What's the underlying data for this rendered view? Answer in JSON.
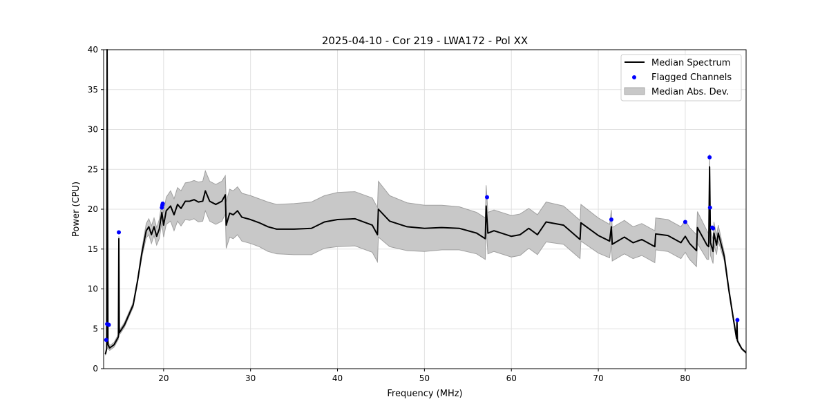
{
  "chart_data": {
    "type": "line",
    "title": "2025-04-10 - Cor 219 - LWA172 - Pol XX",
    "xlabel": "Frequency (MHz)",
    "ylabel": "Power (CPU)",
    "xlim": [
      13.1,
      87.0
    ],
    "ylim": [
      0,
      40
    ],
    "xticks": [
      20,
      30,
      40,
      50,
      60,
      70,
      80
    ],
    "yticks": [
      0,
      5,
      10,
      15,
      20,
      25,
      30,
      35,
      40
    ],
    "grid": true,
    "legend": {
      "placement": "top-right",
      "entries": [
        "Median Spectrum",
        "Flagged Channels",
        "Median Abs. Dev."
      ]
    },
    "colors": {
      "median": "#000000",
      "flagged": "#0000ff",
      "mad": "#c8c8c8",
      "mad_edge": "#a0a0a0"
    },
    "median_spectrum": {
      "x": [
        13.3,
        13.45,
        13.5,
        13.6,
        13.8,
        14.3,
        14.8,
        14.85,
        14.9,
        15.5,
        16.5,
        17.0,
        17.5,
        18.0,
        18.3,
        18.6,
        18.9,
        19.2,
        19.5,
        19.8,
        20.0,
        20.3,
        20.8,
        21.2,
        21.6,
        22.0,
        22.5,
        23.0,
        23.5,
        24.0,
        24.5,
        24.8,
        25.3,
        26.0,
        26.7,
        27.1,
        27.2,
        27.6,
        28.0,
        28.5,
        29,
        30,
        31,
        32,
        33,
        35,
        37,
        38.5,
        40,
        42,
        44,
        44.6,
        44.7,
        46,
        48,
        50,
        52,
        54,
        56,
        57.0,
        57.1,
        57.3,
        58,
        60,
        61,
        62,
        63,
        64,
        66,
        67.9,
        68.0,
        70,
        71.3,
        71.5,
        71.6,
        73,
        74,
        75,
        76.5,
        76.6,
        78,
        79.5,
        80,
        80.5,
        81.3,
        81.4,
        82.5,
        82.7,
        82.8,
        82.9,
        83.2,
        83.3,
        83.6,
        83.8,
        84.5,
        85,
        85.5,
        85.9,
        85.95,
        86.0,
        86.5,
        87.0
      ],
      "y": [
        1.8,
        2.5,
        40,
        3.0,
        2.6,
        3.0,
        4.0,
        16.3,
        4.5,
        5.5,
        8.0,
        11,
        14.5,
        17.3,
        17.8,
        16.8,
        17.8,
        16.6,
        17.5,
        19.6,
        18.0,
        19.8,
        20.4,
        19.3,
        20.6,
        20.1,
        21.0,
        21.0,
        21.2,
        20.9,
        21.0,
        22.3,
        21.0,
        20.6,
        21.0,
        21.8,
        18.0,
        19.5,
        19.3,
        19.8,
        19.0,
        18.7,
        18.3,
        17.8,
        17.5,
        17.5,
        17.6,
        18.4,
        18.7,
        18.8,
        18.0,
        16.8,
        20.0,
        18.5,
        17.8,
        17.6,
        17.7,
        17.6,
        17.0,
        16.3,
        20.4,
        17.0,
        17.3,
        16.6,
        16.8,
        17.6,
        16.8,
        18.4,
        18.0,
        16.2,
        18.3,
        16.7,
        16.0,
        17.8,
        15.6,
        16.5,
        15.8,
        16.2,
        15.3,
        16.9,
        16.7,
        15.8,
        16.6,
        15.7,
        14.8,
        17.7,
        15.5,
        15.3,
        25.3,
        15.8,
        14.7,
        17.0,
        15.5,
        17.0,
        14.0,
        10.0,
        6.5,
        3.8,
        6.0,
        3.5,
        2.5,
        2.0
      ],
      "mad": [
        0.1,
        0.3,
        0.3,
        0.5,
        0.3,
        0.3,
        0.3,
        0.3,
        0.3,
        0.3,
        0.3,
        0.3,
        0.5,
        0.9,
        1.0,
        1.1,
        1.1,
        1.1,
        1.2,
        1.3,
        1.5,
        1.7,
        1.9,
        2.0,
        2.1,
        2.2,
        2.3,
        2.4,
        2.4,
        2.5,
        2.5,
        2.5,
        2.5,
        2.5,
        2.5,
        2.4,
        2.9,
        3.0,
        3.0,
        3.0,
        3.0,
        3.0,
        3.0,
        3.1,
        3.1,
        3.2,
        3.3,
        3.3,
        3.4,
        3.4,
        3.4,
        3.4,
        3.5,
        3.2,
        3.0,
        2.9,
        2.8,
        2.7,
        2.6,
        2.6,
        2.6,
        2.6,
        2.6,
        2.6,
        2.6,
        2.5,
        2.5,
        2.5,
        2.4,
        2.4,
        2.3,
        2.2,
        2.1,
        2.1,
        2.1,
        2.1,
        2.0,
        2.0,
        2.0,
        2.0,
        2.0,
        2.0,
        2.0,
        2.0,
        2.0,
        2.0,
        1.8,
        1.6,
        1.6,
        1.6,
        1.5,
        1.4,
        1.2,
        1.0,
        0.5,
        0.4,
        0.3,
        0.2,
        0.2,
        0.2,
        0.1,
        0.1
      ]
    },
    "flagged_channels": {
      "x": [
        13.4,
        13.5,
        13.7,
        14.85,
        19.8,
        19.85,
        19.9,
        57.2,
        71.5,
        80.0,
        82.8,
        82.85,
        83.1,
        83.2,
        86.0
      ],
      "y": [
        3.6,
        5.6,
        5.5,
        17.1,
        20.2,
        20.5,
        20.7,
        21.5,
        18.7,
        18.4,
        26.5,
        20.2,
        17.7,
        17.6,
        6.1
      ]
    }
  }
}
